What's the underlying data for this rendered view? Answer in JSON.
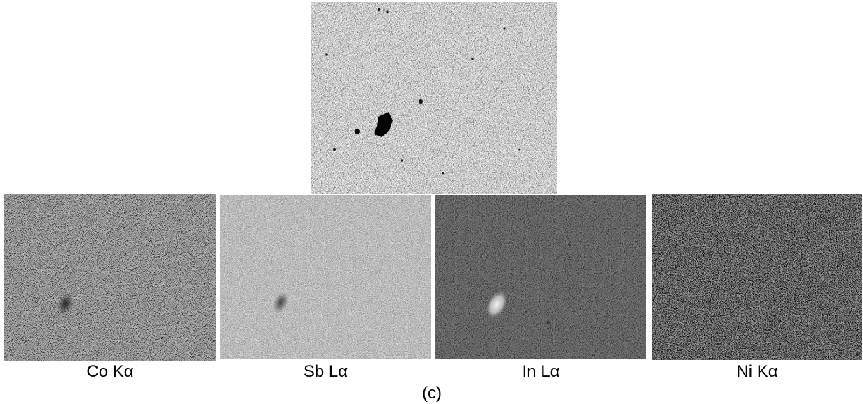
{
  "figure": {
    "label": "(c)",
    "top_map": {
      "label": "",
      "shade": "#b0b0b0"
    },
    "maps": [
      {
        "label": "Co Kα",
        "shade": "#5e5e5e",
        "feature": "dark"
      },
      {
        "label": "Sb Lα",
        "shade": "#9a9a9a",
        "feature": "dark"
      },
      {
        "label": "In Lα",
        "shade": "#121212",
        "feature": "bright"
      },
      {
        "label": "Ni Kα",
        "shade": "#383838",
        "feature": "none"
      }
    ]
  }
}
